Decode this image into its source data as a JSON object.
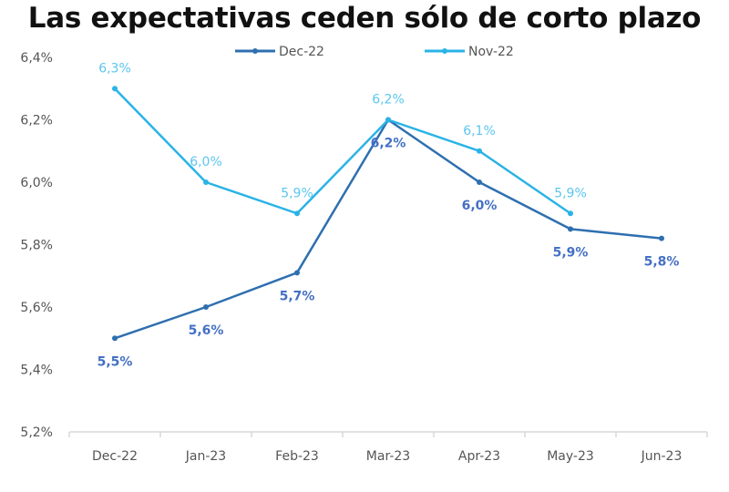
{
  "chart_data": {
    "type": "line",
    "title": "Las expectativas ceden sólo de corto plazo",
    "xlabel": "",
    "ylabel": "",
    "categories": [
      "Dec-22",
      "Jan-23",
      "Feb-23",
      "Mar-23",
      "Apr-23",
      "May-23",
      "Jun-23"
    ],
    "ylim": [
      5.2,
      6.4
    ],
    "yticks": [
      5.2,
      5.4,
      5.6,
      5.8,
      6.0,
      6.2,
      6.4
    ],
    "ytick_labels": [
      "5,2%",
      "5,4%",
      "5,6%",
      "5,8%",
      "6,0%",
      "6,2%",
      "6,4%"
    ],
    "grid": false,
    "legend_position": "top-center",
    "series": [
      {
        "name": "Dec-22",
        "color": "#2e6fb0",
        "label_color": "#4470c4",
        "values": [
          5.5,
          5.6,
          5.71,
          6.2,
          6.0,
          5.85,
          5.82
        ],
        "labels": [
          "5,5%",
          "5,6%",
          "5,7%",
          "6,2%",
          "6,0%",
          "5,9%",
          "5,8%"
        ]
      },
      {
        "name": "Nov-22",
        "color": "#2ab3e6",
        "label_color": "#5cc6ee",
        "values": [
          6.3,
          6.0,
          5.9,
          6.2,
          6.1,
          5.9,
          null
        ],
        "labels": [
          "6,3%",
          "6,0%",
          "5,9%",
          "6,2%",
          "6,1%",
          "5,9%",
          null
        ]
      }
    ]
  }
}
